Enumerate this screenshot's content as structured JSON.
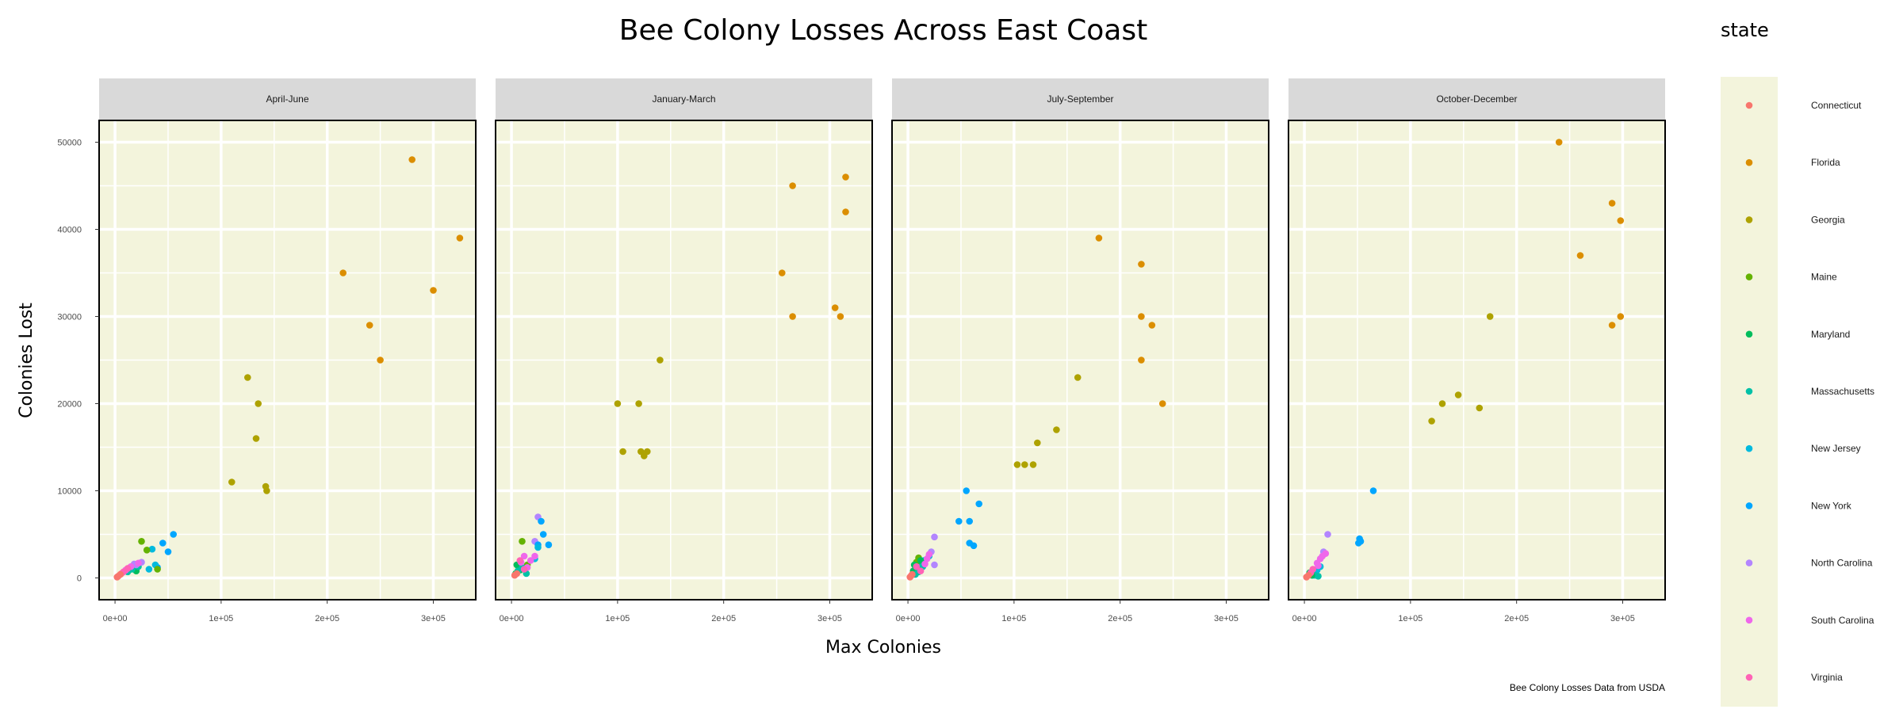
{
  "chart_data": {
    "type": "scatter",
    "title": "Bee Colony Losses Across East Coast",
    "xlabel": "Max Colonies",
    "ylabel": "Colonies Lost",
    "caption": "Bee Colony Losses Data from USDA",
    "legend_title": "state",
    "legend_position": "right",
    "xlim": [
      -15000,
      340000
    ],
    "ylim": [
      -2500,
      52500
    ],
    "x_ticks": [
      0,
      100000,
      200000,
      300000
    ],
    "x_tick_labels": [
      "0e+00",
      "1e+05",
      "2e+05",
      "3e+05"
    ],
    "y_ticks": [
      0,
      10000,
      20000,
      30000,
      40000,
      50000
    ],
    "y_tick_labels": [
      "0",
      "10000",
      "20000",
      "30000",
      "40000",
      "50000"
    ],
    "grid": true,
    "colors": {
      "panel_background": "#f3f4dc",
      "strip_background": "#d9d9d9",
      "grid": "#ffffff",
      "Connecticut": "#F8766D",
      "Florida": "#DB8E00",
      "Georgia": "#AEA200",
      "Maine": "#64B200",
      "Maryland": "#00BD5C",
      "Massachusetts": "#00C1A7",
      "New Jersey": "#00BADE",
      "New York": "#00A6FF",
      "North Carolina": "#B385FF",
      "South Carolina": "#EF67EB",
      "Virginia": "#FF63B6"
    },
    "states": [
      "Connecticut",
      "Florida",
      "Georgia",
      "Maine",
      "Maryland",
      "Massachusetts",
      "New Jersey",
      "New York",
      "North Carolina",
      "South Carolina",
      "Virginia"
    ],
    "panels": [
      {
        "label": "April-June",
        "series": [
          {
            "name": "Florida",
            "x": [
              280000,
              325000,
              215000,
              300000,
              240000,
              250000
            ],
            "y": [
              48000,
              39000,
              35000,
              33000,
              29000,
              25000
            ]
          },
          {
            "name": "Georgia",
            "x": [
              125000,
              135000,
              133000,
              110000,
              142000,
              143000
            ],
            "y": [
              23000,
              20000,
              16000,
              11000,
              10500,
              10000
            ]
          },
          {
            "name": "New York",
            "x": [
              55000,
              45000,
              50000,
              40000
            ],
            "y": [
              5000,
              4000,
              3000,
              1200
            ]
          },
          {
            "name": "New Jersey",
            "x": [
              35000,
              38000,
              32000
            ],
            "y": [
              3300,
              1500,
              1000
            ]
          },
          {
            "name": "Maine",
            "x": [
              25000,
              30000,
              40000
            ],
            "y": [
              4200,
              3200,
              1000
            ]
          },
          {
            "name": "Maryland",
            "x": [
              15000,
              20000,
              18000
            ],
            "y": [
              1000,
              800,
              1200
            ]
          },
          {
            "name": "Massachusetts",
            "x": [
              12000,
              16000,
              22000
            ],
            "y": [
              700,
              1000,
              1300
            ]
          },
          {
            "name": "North Carolina",
            "x": [
              25000,
              20000,
              18000
            ],
            "y": [
              1800,
              1500,
              1600
            ]
          },
          {
            "name": "South Carolina",
            "x": [
              22000,
              15000,
              10000
            ],
            "y": [
              1700,
              1300,
              900
            ]
          },
          {
            "name": "Virginia",
            "x": [
              8000,
              12000,
              6000
            ],
            "y": [
              700,
              1100,
              500
            ]
          },
          {
            "name": "Connecticut",
            "x": [
              3000,
              5000,
              2000
            ],
            "y": [
              200,
              400,
              100
            ]
          }
        ]
      },
      {
        "label": "January-March",
        "series": [
          {
            "name": "Florida",
            "x": [
              265000,
              315000,
              315000,
              255000,
              305000,
              310000,
              265000
            ],
            "y": [
              45000,
              46000,
              42000,
              35000,
              31000,
              30000,
              30000
            ]
          },
          {
            "name": "Georgia",
            "x": [
              140000,
              100000,
              120000,
              105000,
              122000,
              125000,
              128000
            ],
            "y": [
              25000,
              20000,
              20000,
              14500,
              14500,
              14000,
              14500
            ]
          },
          {
            "name": "North Carolina",
            "x": [
              25000,
              22000
            ],
            "y": [
              7000,
              4200
            ]
          },
          {
            "name": "New York",
            "x": [
              28000,
              30000,
              35000,
              25000
            ],
            "y": [
              6500,
              5000,
              3800,
              3800
            ]
          },
          {
            "name": "New Jersey",
            "x": [
              22000,
              25000
            ],
            "y": [
              2200,
              3500
            ]
          },
          {
            "name": "Maine",
            "x": [
              10000,
              15000
            ],
            "y": [
              4200,
              1500
            ]
          },
          {
            "name": "Maryland",
            "x": [
              5000,
              8000,
              4000
            ],
            "y": [
              1500,
              900,
              500
            ]
          },
          {
            "name": "Massachusetts",
            "x": [
              6000,
              10000,
              14000
            ],
            "y": [
              800,
              1200,
              500
            ]
          },
          {
            "name": "South Carolina",
            "x": [
              12000,
              18000,
              22000,
              15000,
              9000
            ],
            "y": [
              2500,
              2000,
              2500,
              1200,
              1800
            ]
          },
          {
            "name": "Virginia",
            "x": [
              8000,
              12000
            ],
            "y": [
              2000,
              1000
            ]
          },
          {
            "name": "Connecticut",
            "x": [
              3000,
              5000
            ],
            "y": [
              300,
              500
            ]
          }
        ]
      },
      {
        "label": "July-September",
        "series": [
          {
            "name": "Florida",
            "x": [
              180000,
              220000,
              220000,
              230000,
              220000,
              240000
            ],
            "y": [
              39000,
              36000,
              30000,
              29000,
              25000,
              20000
            ]
          },
          {
            "name": "Georgia",
            "x": [
              160000,
              140000,
              122000,
              103000,
              110000,
              118000
            ],
            "y": [
              23000,
              17000,
              15500,
              13000,
              13000,
              13000
            ]
          },
          {
            "name": "New York",
            "x": [
              55000,
              67000,
              48000,
              58000,
              58000,
              62000
            ],
            "y": [
              10000,
              8500,
              6500,
              6500,
              4000,
              3700
            ]
          },
          {
            "name": "North Carolina",
            "x": [
              25000,
              22000,
              25000
            ],
            "y": [
              4700,
              3000,
              1500
            ]
          },
          {
            "name": "New Jersey",
            "x": [
              15000,
              12000,
              20000
            ],
            "y": [
              2000,
              1500,
              2500
            ]
          },
          {
            "name": "Maine",
            "x": [
              10000,
              8000
            ],
            "y": [
              2300,
              1800
            ]
          },
          {
            "name": "Maryland",
            "x": [
              6000,
              9000,
              12000,
              5000
            ],
            "y": [
              1500,
              1000,
              2000,
              800
            ]
          },
          {
            "name": "Massachusetts",
            "x": [
              10000,
              14000,
              7000
            ],
            "y": [
              700,
              1300,
              400
            ]
          },
          {
            "name": "South Carolina",
            "x": [
              20000,
              18000,
              16000
            ],
            "y": [
              2700,
              2200,
              1600
            ]
          },
          {
            "name": "Virginia",
            "x": [
              8000,
              12000
            ],
            "y": [
              1300,
              800
            ]
          },
          {
            "name": "Connecticut",
            "x": [
              2000,
              4000,
              3000
            ],
            "y": [
              100,
              400,
              250
            ]
          }
        ]
      },
      {
        "label": "October-December",
        "series": [
          {
            "name": "Florida",
            "x": [
              240000,
              290000,
              298000,
              260000,
              290000,
              298000
            ],
            "y": [
              50000,
              43000,
              41000,
              37000,
              29000,
              30000
            ]
          },
          {
            "name": "Georgia",
            "x": [
              175000,
              145000,
              130000,
              165000,
              120000
            ],
            "y": [
              30000,
              21000,
              20000,
              19500,
              18000
            ]
          },
          {
            "name": "New York",
            "x": [
              65000,
              52000,
              53000,
              51000
            ],
            "y": [
              10000,
              4500,
              4200,
              4000
            ]
          },
          {
            "name": "North Carolina",
            "x": [
              22000,
              18000
            ],
            "y": [
              5000,
              3000
            ]
          },
          {
            "name": "New Jersey",
            "x": [
              15000,
              12000,
              10000,
              8000
            ],
            "y": [
              1300,
              900,
              400,
              300
            ]
          },
          {
            "name": "Massachusetts",
            "x": [
              10000,
              13000
            ],
            "y": [
              300,
              200
            ]
          },
          {
            "name": "Maryland",
            "x": [
              5000,
              7000
            ],
            "y": [
              600,
              300
            ]
          },
          {
            "name": "South Carolina",
            "x": [
              20000,
              17000,
              15000,
              12000,
              13000
            ],
            "y": [
              2800,
              2500,
              2200,
              1700,
              1400
            ]
          },
          {
            "name": "Virginia",
            "x": [
              8000,
              6000
            ],
            "y": [
              1000,
              600
            ]
          },
          {
            "name": "Connecticut",
            "x": [
              2000,
              4000
            ],
            "y": [
              100,
              300
            ]
          }
        ]
      }
    ]
  }
}
